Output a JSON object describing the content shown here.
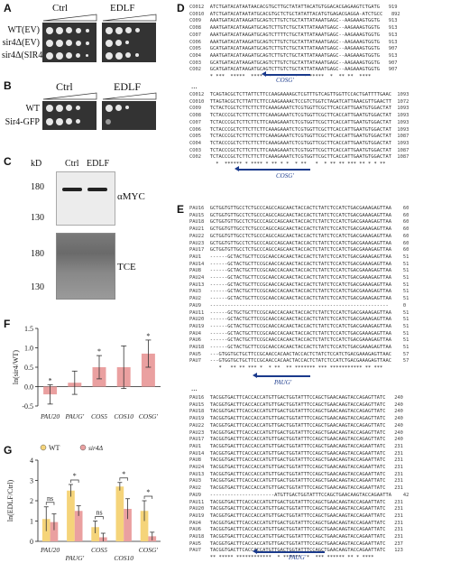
{
  "panels": {
    "A": "A",
    "B": "B",
    "C": "C",
    "D": "D",
    "E": "E",
    "F": "F",
    "G": "G"
  },
  "panelA": {
    "ctrl": "Ctrl",
    "edlf": "EDLF",
    "rows": [
      "WT(EV)",
      "sir4Δ(EV)",
      "sir4Δ(SIR4)"
    ]
  },
  "panelB": {
    "ctrl": "Ctrl",
    "edlf": "EDLF",
    "rows": [
      "WT",
      "Sir4-GFP"
    ]
  },
  "panelC": {
    "kd": "kD",
    "ctrl": "Ctrl",
    "edlf": "EDLF",
    "m180": "180",
    "m130": "130",
    "amyc": "αMYC",
    "tce": "TCE",
    "m180b": "180",
    "m130b": "130"
  },
  "panelD": {
    "block1": [
      [
        "CO012",
        "ATCTGATACATAAT",
        "AACACGTGCTTGCTATAT",
        "TACATGTGGACACGAGAAGTCTGATG",
        "919"
      ],
      [
        "CO010",
        "ATCTGATACATAAT",
        "ATGCACGTGCTCTGCTATAT",
        "TACATGTGAGACGAGGA-ATCTGCC",
        "892"
      ],
      [
        "CO09",
        "AAATGATACATAAG",
        "ATGCAGTCTTGTCTGCTAT",
        "TATAAATGAGC--AAGAAAGTGGTG",
        "913"
      ],
      [
        "CO08",
        "AAATGATACATAAG",
        "ATGCAGTCTTGTCTGCTAT",
        "TATAAATGAGC--AAGAAAGTGGTG",
        "913"
      ],
      [
        "CO07",
        "AAATGATACATAAG",
        "ATGCAGTCTTTTCTGCTAT",
        "TATAAATGAGC--AAGAAAGTGGTG",
        "913"
      ],
      [
        "CO06",
        "AAATGATACATAAG",
        "ATGCAGTCTTGTCTGCTAT",
        "TATAAATGAGC--AAGAAAGTGGTG",
        "913"
      ],
      [
        "CO05",
        "GCATGATACATAAG",
        "ATGCAGTCTTGTCTGCTAT",
        "TATAAATGAGC--AAGAAAGTGGTG",
        "907"
      ],
      [
        "CO04",
        "AAATGATACATAAG",
        "ATGCAGTCTTGTCTGCTAT",
        "TATAAATGAGC--AAGAAAGTGGTG",
        "913"
      ],
      [
        "CO03",
        "GCATGATACATAAG",
        "ATGCAGTCTTGTCTGCTAT",
        "TATAAATGAGC--AAGAAAGTGGTG",
        "907"
      ],
      [
        "CO02",
        "GCATGATACATAAG",
        "ATGCAGTCTTGTCTGCTAT",
        "TATAAATGAGC--AAGAAAGTGGTG",
        "907"
      ]
    ],
    "cons1": "* ***  *****  ****  *   **   *  * *****  *  ** **  ****",
    "cosg": "COSG'",
    "block2": [
      [
        "CO012",
        "TCAGTACGCTCTTATTCTTCCAAGAAAAGCTCGTTTGTCAGTTGGTTCCACTGATTTTGAACTCT",
        "1093"
      ],
      [
        "CO010",
        "TTAGTACGCTCTTATTCTTCCAAGAAAACTCCGTCTGGTCTAGATCATTAAACGTTGAACTTT",
        "1072"
      ],
      [
        "CO09",
        "TCTACTCGCTCTTCTTCTTCAAAGAAATCTCGTGGTTCGCTTCACCATTGAATGTGGACTAT",
        "1093"
      ],
      [
        "CO08",
        "TCTACCCGCTCTTCTTCTTCAAAGAAATCTCGTGGTTCGCTTCACCATTGAATGTGGACTAT",
        "1093"
      ],
      [
        "CO07",
        "TCTACCCGCTCTTCTTCTTCAAAGAAATCTCGTGGTTCGCTTCACCATTGAATGTGGACTAT",
        "1093"
      ],
      [
        "CO06",
        "TCTACCCGCTCTTCTTCTTCAAAGAAATCTCGTGGTTCGCTTCACCATTGAATGTGGACTAT",
        "1093"
      ],
      [
        "CO05",
        "TCTACCCGCTCTTCTTCTTCAAAGAAATCTCGTGGTTCGCTTCACCATTGAATGTGGACTAT",
        "1087"
      ],
      [
        "CO04",
        "TCTACCCGCTCTTCTTCTTCAAAGAAATCTCGTGGTTCGCTTCACCATTGAATGTGGACTAT",
        "1093"
      ],
      [
        "CO03",
        "TCTACCCGCTCTTCTTCTTCAAAGAAATCTCGTGGTTCGCTTCACCATTGAATGTGGACTAT",
        "1087"
      ],
      [
        "CO02",
        "TCTACCCGCTCTTCTTCTTCAAAGAAATCTCGTGGTTCGCTTCACCATTGAATGTGGACTAT",
        "1087"
      ]
    ],
    "cons2": "  *  ****** * **** * ** * *  * **   *  * ** ** *** ** * * **",
    "cosg2": "COSG'"
  },
  "panelE": {
    "block1": [
      [
        "PAU16",
        "GCTGGTGTTGCCTCTGCCCAGCCAGCAACTACCACTCTATCTCCATCTGACGAAAGAGTTAAC",
        "60"
      ],
      [
        "PAU15",
        "GCTGGTGTTGCCTCTGCCCAGCCAGCAACTACCACTCTATCTCCATCTGACGAAAGAGTTAAC",
        "60"
      ],
      [
        "PAU18",
        "GCTGGTGTTGCCTCTGCCCAGCCAGCAACTACCACTCTATCTCCATCTGACGAAAGAGTTAAC",
        "60"
      ],
      [
        "PAU21",
        "GCTGGTGTTGCCTCTGCCCAGCCAGCAACTACCACTCTATCTCCATCTGACGAAAGAGTTAAC",
        "60"
      ],
      [
        "PAU22",
        "GCTGGTGTTGCCTCTGCCCAGCCAGCAACTACCACTCTATCTCCATCTGACGAAAGAGTTAAC",
        "60"
      ],
      [
        "PAU23",
        "GCTGGTGTTGCCTCTGCCCAGCCAGCAACTACCACTCTATCTCCATCTGACGAAAGAGTTAAC",
        "60"
      ],
      [
        "PAU17",
        "GCTGGTGTTGCCTCTGCCCAGCCAGCAACTACCACTCTATCTCCATCTGACGAAAGAGTTAAC",
        "60"
      ],
      [
        "PAU1",
        "------GCTACTGCTTCCGCAACCACAACTACCACTCTATCTCCATCTGACGAAAGAGTTAAC",
        "51"
      ],
      [
        "PAU14",
        "------GCTACTGCTTCCGCAACCACAACTACCACTCTATCTCCATCTGACGAAAGAGTTAAC",
        "51"
      ],
      [
        "PAU8",
        "------GCTACTGCTTCCGCAACCACAACTACCACTCTATCTCCATCTGACGAAAGAGTTAAC",
        "51"
      ],
      [
        "PAU24",
        "------GCTACTGCTTCCGCAACCACAACTACCACTCTATCTCCATCTGACGAAAGAGTTAAC",
        "51"
      ],
      [
        "PAU13",
        "------GCTACTGCTTCCGCAACCACAACTACCACTCTATCTCCATCTGACGAAAGAGTTAAC",
        "51"
      ],
      [
        "PAU3",
        "------GCTACTGCTTCCGCAACCACAACTACCACTCTATCTCCATCTGACGAAAGAGTTAAC",
        "51"
      ],
      [
        "PAU2",
        "------GCTACTGCTTCCGCAACCACAACTACCACTCTATCTCCATCTGACGAAAGAGTTAAC",
        "51"
      ],
      [
        "PAU9",
        "-------------------------------------------------------------",
        "0"
      ],
      [
        "PAU11",
        "------GCTGCTGCTTCCGCAACCACAACTACCACTCTATCTCCATCTGACGAAAGAGTTAAC",
        "51"
      ],
      [
        "PAU20",
        "------GCTACTGCTTCCGCAACCACAACTACCACTCTATCTCCATCTGACGAAAGAGTTAAC",
        "51"
      ],
      [
        "PAU19",
        "------GCTACTGCTTCCGCAACCACAACTACCACTCTATCTCCATCTGACGAAAGAGTTAAC",
        "51"
      ],
      [
        "PAU4",
        "------GCTACTGCTTCCGCAACCACAACTACCACTCTATCTCCATCTGACGAAAGAGTTAAC",
        "51"
      ],
      [
        "PAU6",
        "------GCTACTGCTTCCGCAACCACAACTACCACTCTATCTCCATCTGACGAAAGAGTTAAC",
        "51"
      ],
      [
        "PAU18",
        "------GCTACTGCTTCCGCAACCACAACTACCACTCTATCTCCATCTGACGAAAGAGTTAAC",
        "51"
      ],
      [
        "PAU5",
        "---GTGGTGCTGCTTCCGCAACCACAACTACCACTCTATCTCCATCTGACGAAAGAGTTAAC",
        "57"
      ],
      [
        "PAU7",
        "---GTGGTGCTGCTTCCGCAACCACAACTACCACTCTATCTCCATCTGACGAAAGAGTTAAC",
        "57"
      ]
    ],
    "cons1": "   *   ** ** *** *  * **  ** ******* *** *********** ** ***",
    "paug": "PAUG'",
    "block2": [
      [
        "PAU16",
        "TACGGTGACTTCACCACCATGTTGACTGGTATTTCCAGCTGAACAAGTACCAGAGTTATC",
        "240"
      ],
      [
        "PAU15",
        "TACGGTGACTTCACCACCATGTTGACTGGTATTTCCAGCTGAACAAGTACCAGAGTTATC",
        "240"
      ],
      [
        "PAU18",
        "TACGGTGACTTCACCACCATGTTGACTGGTATTTCCAGCTGAACAAGTACCAGAGTTATC",
        "240"
      ],
      [
        "PAU19",
        "TACGGTGACTTCACCACCATGTTGACTGGTATTTCCAGCTGAACAAGTACCAGAGTTATC",
        "240"
      ],
      [
        "PAU22",
        "TACGGTGACTTCACCACCATGTTGACTGGTATTTCCAGCTGAACAAGTACCAGAGTTATC",
        "240"
      ],
      [
        "PAU23",
        "TACGGTGACTTCACCACCATGTTGACTGGTATTTCCAGCTGAACAAGTACCAGAGTTATC",
        "240"
      ],
      [
        "PAU17",
        "TACGGTGACTTCACCACCATGTTGACTGGTATTTCCAGCTGAACAAGTACCAGAGTTATC",
        "240"
      ],
      [
        "PAU1",
        "TACGGTGACTTCACCACCATGTTGACTGGTATTTCCAGCTGAACAAGTACCAGAATTATC",
        "231"
      ],
      [
        "PAU14",
        "TACGGTGACTTCACCACCATGTTGACTGGTATTTCCAGCTGAACAAGTACCAGAATTATC",
        "231"
      ],
      [
        "PAU8",
        "TACGGTGACTTCACCACCATGTTGACTGGTATTTCCAGCTGAACAAGTACCAGAATTATC",
        "231"
      ],
      [
        "PAU24",
        "TACGGTGACTTCACCACCATGTTGACTGGTATTTCCAGCTGAACAAGTACCAGAATTATC",
        "231"
      ],
      [
        "PAU13",
        "TACGGTGACTTCACCACCATGTTGACTGGTATTTCCAGCTGAACAAGTACCAGAATTATC",
        "231"
      ],
      [
        "PAU3",
        "TACGGTGACTTCACCACCATGTTGACTGGTATTTCCAGCTGAACAAGTACCAGAATTATC",
        "231"
      ],
      [
        "PAU2",
        "TACGGTGACTTCACCACCATGTTGACTGGTATTTCCAGCTGAACAAGTACCAGAATTATC",
        "231"
      ],
      [
        "PAU9",
        "----------------------ATGTTGACTGGTATTTCCAGCTGAACAAGTACCAGAATTATC",
        "42"
      ],
      [
        "PAU11",
        "TACGGTGACTTCACCACCATGTTGACTGGTATTTCCAGCTGAACAAGTACCAGAATTATC",
        "231"
      ],
      [
        "PAU20",
        "TACGGTGACTTCACCACCATGTTGACTGGTATTTCCAGCTGAACAAGTACCAGAATTATC",
        "231"
      ],
      [
        "PAU19",
        "TACGGTGACTTCACCACCATGTTGACTGGTATTTCCAGCTGAACAAGTACCAGAATTATC",
        "231"
      ],
      [
        "PAU4",
        "TACGGTGACTTCACCACCATGTTGACTGGTATTTCCAGCTGAACAAGTACCAGAATTATC",
        "231"
      ],
      [
        "PAU6",
        "TACGGTGACTTCACCACCATGTTGACTGGTATTTCCAGCTGAACAAGTACCAGAATTATC",
        "231"
      ],
      [
        "PAU18",
        "TACGGTGACTTCACCACCATGTTGACTGGTATTTCCAGCTGAACAAGTACCAGAATTATC",
        "231"
      ],
      [
        "PAU5",
        "TACGGTGACTTCACCACCATGTTGACTGGTATTTCCAGCTGAACAAGTACCAGAATTATC",
        "237"
      ],
      [
        "PAU7",
        "TACGGTGACTTCACCACCATGTTGACTGGTATTTCCAGCTGAACAAGTACCAGAATTATC",
        "123"
      ]
    ],
    "cons2": "** ***** ************  * ******  *  *** ****** ** * ****",
    "paug2": "PAUG'"
  },
  "chart_data": [
    {
      "type": "bar",
      "panel": "F",
      "ylabel": "ln(sir4/WT)",
      "ylim": [
        -0.5,
        1.5
      ],
      "yticks": [
        "-0.5",
        "0.0",
        "0.5",
        "1.0",
        "1.5"
      ],
      "categories": [
        "PAU20",
        "PAUG'",
        "COS5",
        "COS10",
        "COSG'"
      ],
      "values": [
        -0.2,
        0.1,
        0.5,
        0.5,
        0.85
      ],
      "errors": [
        0.25,
        0.3,
        0.3,
        0.55,
        0.35
      ],
      "sig": [
        "*",
        "",
        "*",
        "",
        "*"
      ],
      "color": "#eaa0a0"
    },
    {
      "type": "bar",
      "panel": "G",
      "ylabel": "ln(EDLF/Ctrl)",
      "ylim": [
        0,
        4
      ],
      "yticks": [
        "0",
        "1",
        "2",
        "3",
        "4"
      ],
      "categories": [
        "PAU20",
        "PAUG'",
        "COS5",
        "COS10",
        "COSG'"
      ],
      "series": [
        {
          "name": "WT",
          "values": [
            1.1,
            2.5,
            0.7,
            2.7,
            1.5
          ],
          "errors": [
            0.6,
            0.3,
            0.3,
            0.2,
            0.5
          ],
          "color": "#f5d47a"
        },
        {
          "name": "sir4Δ",
          "values": [
            0.95,
            1.5,
            0.2,
            1.6,
            0.25
          ],
          "errors": [
            0.4,
            0.25,
            0.2,
            0.5,
            0.2
          ],
          "color": "#eaa0a0"
        }
      ],
      "sig": [
        "ns",
        "*",
        "ns",
        "*",
        "*"
      ]
    }
  ]
}
